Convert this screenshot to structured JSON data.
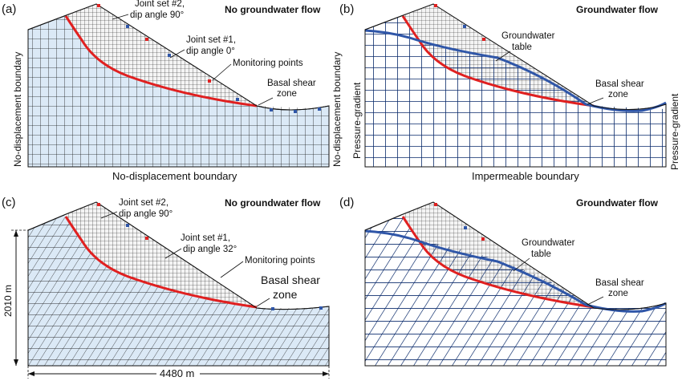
{
  "panels": {
    "a": {
      "letter": "(a)",
      "title": "No groundwater flow",
      "joint2": [
        "Joint set #2,",
        "dip angle 90°"
      ],
      "joint1": [
        "Joint set #1,",
        "dip angle 0°"
      ],
      "monitoring": "Monitoring points",
      "basal": [
        "Basal shear",
        "zone"
      ],
      "left_boundary": "No-displacement boundary",
      "right_boundary": "No-displacement boundary",
      "bottom_boundary": "No-displacement boundary"
    },
    "b": {
      "letter": "(b)",
      "title": "Groundwater flow",
      "gw_table": [
        "Groundwater",
        "table"
      ],
      "basal": [
        "Basal shear",
        "zone"
      ],
      "left_boundary": "Pressure-gradient",
      "right_boundary": "Pressure-gradient",
      "bottom_boundary": "Impermeable boundary"
    },
    "c": {
      "letter": "(c)",
      "title": "No groundwater flow",
      "joint2": [
        "Joint set #2,",
        "dip angle 90°"
      ],
      "joint1": [
        "Joint set #1,",
        "dip angle 32°"
      ],
      "monitoring": "Monitoring points",
      "basal": [
        "Basal shear",
        "zone"
      ],
      "height_dim": "2010 m",
      "width_dim": "4480 m"
    },
    "d": {
      "letter": "(d)",
      "title": "Groundwater flow",
      "gw_table": [
        "Groundwater",
        "table"
      ],
      "basal": [
        "Basal shear",
        "zone"
      ]
    }
  },
  "colors": {
    "rock_fill": "#dbe9f6",
    "grid_line": "#1a1a1a",
    "dense_grid": "#222222",
    "slip_surface": "#e02020",
    "groundwater": "#2f56a8",
    "blue_grid": "#0a2a6b",
    "monitor_red": "#e02020",
    "monitor_blue": "#2f56a8"
  }
}
